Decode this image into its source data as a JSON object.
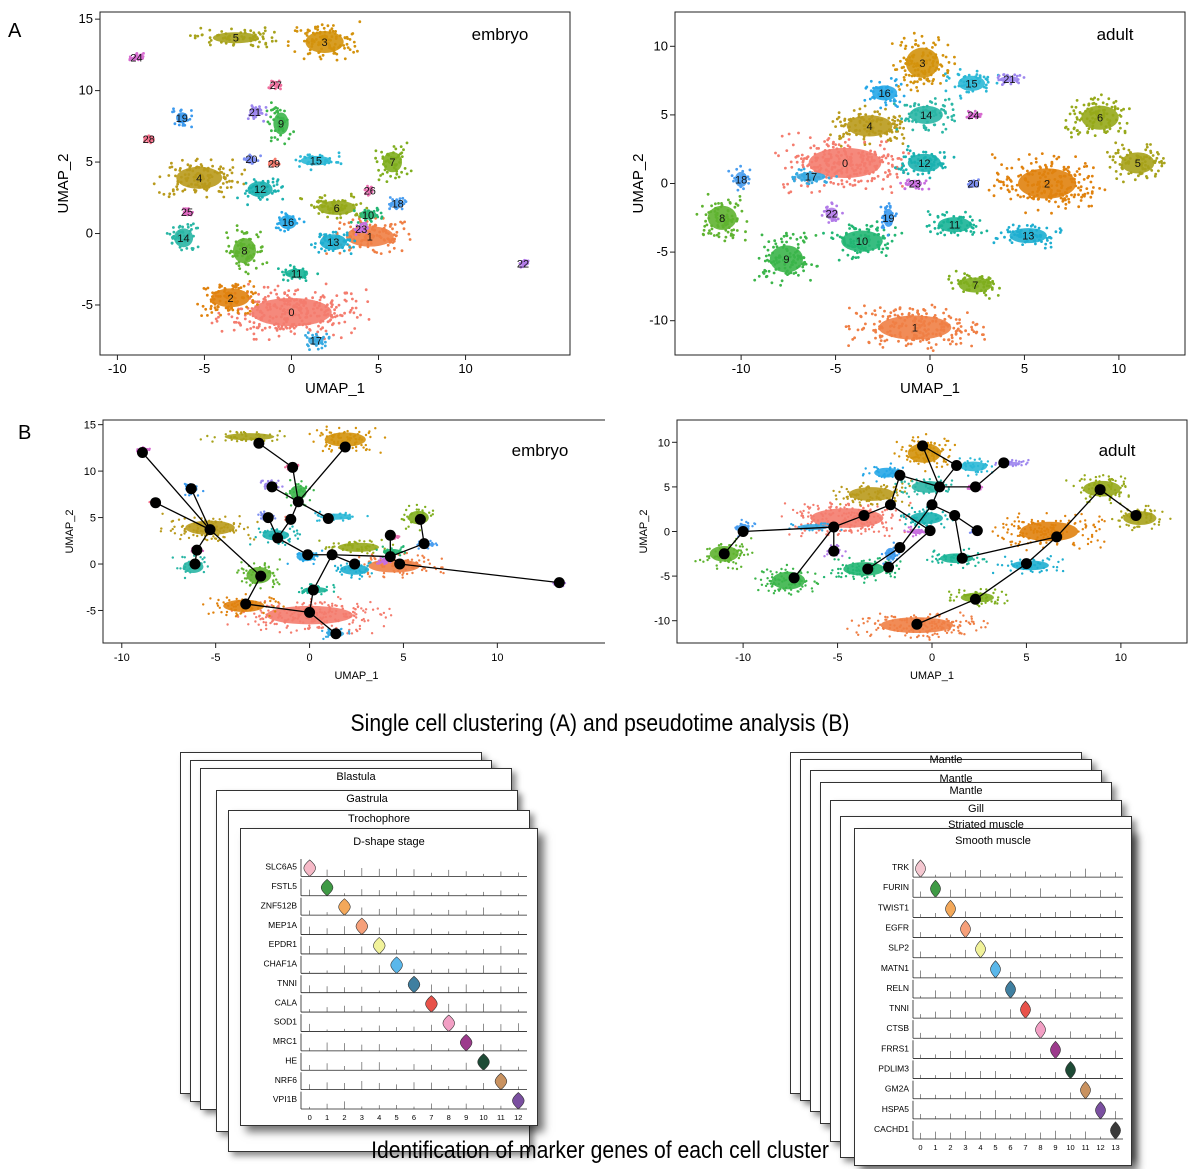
{
  "panel_letters": {
    "a": "A",
    "b": "B"
  },
  "captions": {
    "top": "Single cell clustering (A) and pseudotime analysis (B)",
    "bottom": "Identification of marker genes of each cell cluster"
  },
  "colors": {
    "c0": "#f47c6e",
    "c1": "#ef7f45",
    "c2": "#e0820e",
    "c3": "#d3920c",
    "c4": "#b99a1c",
    "c5": "#a7a21b",
    "c6": "#96a91a",
    "c7": "#7fae1e",
    "c8": "#5fb330",
    "c9": "#3bb54a",
    "c10": "#22b673",
    "c11": "#19b497",
    "c12": "#1bb1b0",
    "c13": "#1eaed0",
    "c14": "#2ab6a5",
    "c15": "#2bb8d6",
    "c16": "#26a7e7",
    "c17": "#36a9e1",
    "c18": "#4a9ef0",
    "c19": "#3b99ee",
    "c20": "#7d8ff2",
    "c21": "#9d86ee",
    "c22": "#b27be8",
    "c23": "#c86fdf",
    "c24": "#d76bd0",
    "c25": "#e06ac2",
    "c26": "#e870b1",
    "c27": "#ef6f9e",
    "c28": "#f4728c",
    "c29": "#f47c6e"
  },
  "chart_data": [
    {
      "type": "scatter",
      "name": "embryo",
      "title": "embryo",
      "xlabel": "UMAP_1",
      "ylabel": "UMAP_2",
      "xlim": [
        -11,
        16
      ],
      "ylim": [
        -8.5,
        15.5
      ],
      "xticks": [
        -10,
        -5,
        0,
        5,
        10
      ],
      "yticks": [
        -5,
        0,
        5,
        10,
        15
      ],
      "clusters": [
        {
          "label": "0",
          "x": 0.0,
          "y": -5.5,
          "rx": 4.2,
          "ry": 1.8,
          "color": "#f47c6e"
        },
        {
          "label": "1",
          "x": 4.5,
          "y": -0.2,
          "rx": 2.5,
          "ry": 1.3,
          "color": "#ef7f45"
        },
        {
          "label": "2",
          "x": -3.5,
          "y": -4.5,
          "rx": 2.0,
          "ry": 1.2,
          "color": "#e0820e"
        },
        {
          "label": "3",
          "x": 1.9,
          "y": 13.4,
          "rx": 2.0,
          "ry": 1.4,
          "color": "#d3920c"
        },
        {
          "label": "4",
          "x": -5.3,
          "y": 3.9,
          "rx": 2.4,
          "ry": 1.4,
          "color": "#b99a1c"
        },
        {
          "label": "5",
          "x": -3.2,
          "y": 13.7,
          "rx": 2.4,
          "ry": 0.7,
          "color": "#a7a21b"
        },
        {
          "label": "6",
          "x": 2.6,
          "y": 1.8,
          "rx": 2.0,
          "ry": 0.9,
          "color": "#96a91a"
        },
        {
          "label": "7",
          "x": 5.8,
          "y": 5.0,
          "rx": 1.0,
          "ry": 1.3,
          "color": "#7fae1e"
        },
        {
          "label": "8",
          "x": -2.7,
          "y": -1.2,
          "rx": 1.2,
          "ry": 1.6,
          "color": "#5fb330"
        },
        {
          "label": "9",
          "x": -0.6,
          "y": 7.7,
          "rx": 0.8,
          "ry": 1.4,
          "color": "#3bb54a"
        },
        {
          "label": "10",
          "x": 4.4,
          "y": 1.3,
          "rx": 0.9,
          "ry": 0.6,
          "color": "#22b673"
        },
        {
          "label": "11",
          "x": 0.3,
          "y": -2.8,
          "rx": 1.2,
          "ry": 0.6,
          "color": "#19b497"
        },
        {
          "label": "12",
          "x": -1.8,
          "y": 3.1,
          "rx": 1.3,
          "ry": 1.0,
          "color": "#1bb1b0"
        },
        {
          "label": "13",
          "x": 2.4,
          "y": -0.6,
          "rx": 1.4,
          "ry": 1.0,
          "color": "#1eaed0"
        },
        {
          "label": "14",
          "x": -6.2,
          "y": -0.3,
          "rx": 1.0,
          "ry": 1.2,
          "color": "#2ab6a5"
        },
        {
          "label": "15",
          "x": 1.4,
          "y": 5.1,
          "rx": 1.6,
          "ry": 0.6,
          "color": "#2bb8d6"
        },
        {
          "label": "16",
          "x": -0.2,
          "y": 0.8,
          "rx": 0.9,
          "ry": 0.9,
          "color": "#26a7e7"
        },
        {
          "label": "17",
          "x": 1.4,
          "y": -7.5,
          "rx": 0.8,
          "ry": 0.6,
          "color": "#36a9e1"
        },
        {
          "label": "18",
          "x": 6.1,
          "y": 2.1,
          "rx": 0.7,
          "ry": 0.5,
          "color": "#4a9ef0"
        },
        {
          "label": "19",
          "x": -6.3,
          "y": 8.1,
          "rx": 0.6,
          "ry": 0.7,
          "color": "#3b99ee"
        },
        {
          "label": "20",
          "x": -2.3,
          "y": 5.2,
          "rx": 0.5,
          "ry": 0.4,
          "color": "#7d8ff2"
        },
        {
          "label": "21",
          "x": -2.1,
          "y": 8.5,
          "rx": 0.6,
          "ry": 0.6,
          "color": "#9d86ee"
        },
        {
          "label": "22",
          "x": 13.3,
          "y": -2.1,
          "rx": 0.3,
          "ry": 0.3,
          "color": "#b27be8"
        },
        {
          "label": "23",
          "x": 4.0,
          "y": 0.3,
          "rx": 0.4,
          "ry": 0.4,
          "color": "#c86fdf"
        },
        {
          "label": "24",
          "x": -8.9,
          "y": 12.3,
          "rx": 0.4,
          "ry": 0.3,
          "color": "#d76bd0"
        },
        {
          "label": "25",
          "x": -6.0,
          "y": 1.5,
          "rx": 0.3,
          "ry": 0.3,
          "color": "#e06ac2"
        },
        {
          "label": "26",
          "x": 4.5,
          "y": 3.0,
          "rx": 0.3,
          "ry": 0.3,
          "color": "#e870b1"
        },
        {
          "label": "27",
          "x": -0.9,
          "y": 10.4,
          "rx": 0.4,
          "ry": 0.3,
          "color": "#ef6f9e"
        },
        {
          "label": "28",
          "x": -8.2,
          "y": 6.6,
          "rx": 0.3,
          "ry": 0.3,
          "color": "#f4728c"
        },
        {
          "label": "29",
          "x": -1.0,
          "y": 4.9,
          "rx": 0.3,
          "ry": 0.3,
          "color": "#f47c6e"
        }
      ],
      "trajectory_nodes": [
        {
          "x": -8.9,
          "y": 12.0
        },
        {
          "x": -8.2,
          "y": 6.6
        },
        {
          "x": -5.3,
          "y": 3.7
        },
        {
          "x": -6.3,
          "y": 8.1
        },
        {
          "x": -6.0,
          "y": 1.5
        },
        {
          "x": -6.1,
          "y": 0.0
        },
        {
          "x": -2.7,
          "y": 13.0
        },
        {
          "x": -0.9,
          "y": 10.4
        },
        {
          "x": 1.9,
          "y": 12.6
        },
        {
          "x": -2.0,
          "y": 8.3
        },
        {
          "x": -0.6,
          "y": 6.7
        },
        {
          "x": -1.0,
          "y": 4.8
        },
        {
          "x": 1.0,
          "y": 4.9
        },
        {
          "x": -2.2,
          "y": 5.0
        },
        {
          "x": -1.7,
          "y": 2.8
        },
        {
          "x": -0.1,
          "y": 1.0
        },
        {
          "x": 1.2,
          "y": 1.0
        },
        {
          "x": 2.4,
          "y": 0.0
        },
        {
          "x": 4.3,
          "y": 0.8
        },
        {
          "x": 4.3,
          "y": 3.1
        },
        {
          "x": 4.8,
          "y": 0.0
        },
        {
          "x": 5.9,
          "y": 4.8
        },
        {
          "x": 6.1,
          "y": 2.2
        },
        {
          "x": 13.3,
          "y": -2.0
        },
        {
          "x": -2.6,
          "y": -1.3
        },
        {
          "x": -3.4,
          "y": -4.3
        },
        {
          "x": 0.2,
          "y": -2.8
        },
        {
          "x": 0.0,
          "y": -5.2
        },
        {
          "x": 1.4,
          "y": -7.5
        }
      ],
      "trajectory_edges": [
        [
          0,
          2
        ],
        [
          1,
          2
        ],
        [
          3,
          2
        ],
        [
          4,
          2
        ],
        [
          5,
          4
        ],
        [
          2,
          24
        ],
        [
          24,
          25
        ],
        [
          25,
          27
        ],
        [
          27,
          28
        ],
        [
          27,
          26
        ],
        [
          26,
          16
        ],
        [
          16,
          15
        ],
        [
          15,
          14
        ],
        [
          14,
          13
        ],
        [
          14,
          11
        ],
        [
          11,
          10
        ],
        [
          10,
          7
        ],
        [
          7,
          6
        ],
        [
          10,
          8
        ],
        [
          10,
          9
        ],
        [
          10,
          12
        ],
        [
          16,
          17
        ],
        [
          16,
          18
        ],
        [
          18,
          19
        ],
        [
          18,
          20
        ],
        [
          18,
          22
        ],
        [
          22,
          21
        ],
        [
          20,
          23
        ]
      ]
    },
    {
      "type": "scatter",
      "name": "adult",
      "title": "adult",
      "xlabel": "UMAP_1",
      "ylabel": "UMAP_2",
      "xlim": [
        -13.5,
        13.5
      ],
      "ylim": [
        -12.5,
        12.5
      ],
      "xticks": [
        -10,
        -5,
        0,
        5,
        10
      ],
      "yticks": [
        -10,
        -5,
        0,
        5,
        10
      ],
      "clusters": [
        {
          "label": "0",
          "x": -4.5,
          "y": 1.5,
          "rx": 3.5,
          "ry": 2.0,
          "color": "#f47c6e"
        },
        {
          "label": "1",
          "x": -0.8,
          "y": -10.5,
          "rx": 3.5,
          "ry": 1.6,
          "color": "#ef7f45"
        },
        {
          "label": "2",
          "x": 6.2,
          "y": 0.0,
          "rx": 2.8,
          "ry": 2.0,
          "color": "#e0820e"
        },
        {
          "label": "3",
          "x": -0.4,
          "y": 8.8,
          "rx": 1.6,
          "ry": 2.0,
          "color": "#d3920c"
        },
        {
          "label": "4",
          "x": -3.2,
          "y": 4.2,
          "rx": 2.2,
          "ry": 1.4,
          "color": "#b99a1c"
        },
        {
          "label": "5",
          "x": 11.0,
          "y": 1.5,
          "rx": 1.6,
          "ry": 1.4,
          "color": "#a7a21b"
        },
        {
          "label": "6",
          "x": 9.0,
          "y": 4.8,
          "rx": 1.8,
          "ry": 1.6,
          "color": "#96a91a"
        },
        {
          "label": "7",
          "x": 2.4,
          "y": -7.4,
          "rx": 1.6,
          "ry": 1.0,
          "color": "#7fae1e"
        },
        {
          "label": "8",
          "x": -11.0,
          "y": -2.5,
          "rx": 1.4,
          "ry": 1.6,
          "color": "#5fb330"
        },
        {
          "label": "9",
          "x": -7.6,
          "y": -5.5,
          "rx": 1.6,
          "ry": 1.8,
          "color": "#3bb54a"
        },
        {
          "label": "10",
          "x": -3.6,
          "y": -4.2,
          "rx": 2.0,
          "ry": 1.4,
          "color": "#22b673"
        },
        {
          "label": "11",
          "x": 1.3,
          "y": -3.0,
          "rx": 1.6,
          "ry": 1.0,
          "color": "#19b497"
        },
        {
          "label": "12",
          "x": -0.3,
          "y": 1.5,
          "rx": 1.6,
          "ry": 1.2,
          "color": "#1bb1b0"
        },
        {
          "label": "13",
          "x": 5.2,
          "y": -3.8,
          "rx": 1.8,
          "ry": 1.0,
          "color": "#1eaed0"
        },
        {
          "label": "14",
          "x": -0.2,
          "y": 5.0,
          "rx": 1.6,
          "ry": 1.2,
          "color": "#2ab6a5"
        },
        {
          "label": "15",
          "x": 2.2,
          "y": 7.3,
          "rx": 1.3,
          "ry": 1.0,
          "color": "#2bb8d6"
        },
        {
          "label": "16",
          "x": -2.4,
          "y": 6.6,
          "rx": 1.2,
          "ry": 1.0,
          "color": "#26a7e7"
        },
        {
          "label": "17",
          "x": -6.3,
          "y": 0.5,
          "rx": 1.4,
          "ry": 0.6,
          "color": "#36a9e1"
        },
        {
          "label": "18",
          "x": -10.0,
          "y": 0.3,
          "rx": 0.6,
          "ry": 1.0,
          "color": "#4a9ef0"
        },
        {
          "label": "19",
          "x": -2.2,
          "y": -2.5,
          "rx": 0.5,
          "ry": 1.2,
          "color": "#3b99ee"
        },
        {
          "label": "20",
          "x": 2.3,
          "y": 0.0,
          "rx": 0.3,
          "ry": 0.3,
          "color": "#7d8ff2"
        },
        {
          "label": "21",
          "x": 4.2,
          "y": 7.6,
          "rx": 0.9,
          "ry": 0.4,
          "color": "#9d86ee"
        },
        {
          "label": "22",
          "x": -5.2,
          "y": -2.2,
          "rx": 0.6,
          "ry": 0.8,
          "color": "#b27be8"
        },
        {
          "label": "23",
          "x": -0.8,
          "y": 0.0,
          "rx": 0.7,
          "ry": 0.5,
          "color": "#c86fdf"
        },
        {
          "label": "24",
          "x": 2.3,
          "y": 5.0,
          "rx": 0.4,
          "ry": 0.3,
          "color": "#d76bd0"
        }
      ],
      "trajectory_nodes": [
        {
          "x": -10.0,
          "y": 0.0
        },
        {
          "x": -11.0,
          "y": -2.5
        },
        {
          "x": -5.2,
          "y": 0.5
        },
        {
          "x": -7.3,
          "y": -5.2
        },
        {
          "x": -3.6,
          "y": 1.8
        },
        {
          "x": -5.2,
          "y": -2.2
        },
        {
          "x": -2.2,
          "y": 3.0
        },
        {
          "x": -1.7,
          "y": 6.3
        },
        {
          "x": -0.5,
          "y": 9.6
        },
        {
          "x": 1.3,
          "y": 7.4
        },
        {
          "x": 0.4,
          "y": 5.0
        },
        {
          "x": 2.3,
          "y": 5.0
        },
        {
          "x": 3.8,
          "y": 7.7
        },
        {
          "x": 0.0,
          "y": 3.0
        },
        {
          "x": 1.2,
          "y": 1.8
        },
        {
          "x": 2.4,
          "y": 0.1
        },
        {
          "x": -1.7,
          "y": -1.8
        },
        {
          "x": -3.4,
          "y": -4.2
        },
        {
          "x": -0.1,
          "y": 0.1
        },
        {
          "x": -2.3,
          "y": -4.0
        },
        {
          "x": 1.6,
          "y": -3.0
        },
        {
          "x": 6.6,
          "y": -0.6
        },
        {
          "x": 8.9,
          "y": 4.7
        },
        {
          "x": 10.8,
          "y": 1.8
        },
        {
          "x": 5.0,
          "y": -3.6
        },
        {
          "x": 2.3,
          "y": -7.6
        },
        {
          "x": -0.8,
          "y": -10.4
        }
      ],
      "trajectory_edges": [
        [
          1,
          0
        ],
        [
          0,
          2
        ],
        [
          2,
          3
        ],
        [
          2,
          4
        ],
        [
          4,
          6
        ],
        [
          2,
          5
        ],
        [
          6,
          7
        ],
        [
          7,
          10
        ],
        [
          10,
          8
        ],
        [
          8,
          9
        ],
        [
          9,
          10
        ],
        [
          10,
          11
        ],
        [
          11,
          12
        ],
        [
          10,
          13
        ],
        [
          13,
          14
        ],
        [
          14,
          15
        ],
        [
          13,
          16
        ],
        [
          16,
          17
        ],
        [
          6,
          18
        ],
        [
          18,
          19
        ],
        [
          14,
          20
        ],
        [
          20,
          21
        ],
        [
          21,
          22
        ],
        [
          22,
          23
        ],
        [
          21,
          24
        ],
        [
          24,
          25
        ],
        [
          25,
          26
        ]
      ]
    }
  ],
  "violin_stacks": [
    {
      "name": "embryo-markers",
      "stack_titles": [
        "Blastula",
        "Gastrula",
        "Trochophore"
      ],
      "front_title": "D-shape stage",
      "genes": [
        "SLC6A5",
        "FSTL5",
        "ZNF512B",
        "MEP1A",
        "EPDR1",
        "CHAF1A",
        "TNNI",
        "CALA",
        "SOD1",
        "MRC1",
        "HE",
        "NRF6",
        "VPI1B"
      ],
      "clusters": [
        "0",
        "1",
        "2",
        "3",
        "4",
        "5",
        "6",
        "7",
        "8",
        "9",
        "10",
        "11",
        "12"
      ],
      "colors": [
        "#f6b9c7",
        "#3f9a45",
        "#f3a85a",
        "#f6a07a",
        "#f1f29a",
        "#5ab7ea",
        "#3f7fa0",
        "#e8524a",
        "#f29fc4",
        "#9c3b8c",
        "#1d4a35",
        "#c99260",
        "#7a4fa0"
      ]
    },
    {
      "name": "adult-markers",
      "stack_titles": [
        "Mantle",
        "Mantle",
        "Mantle",
        "Gill",
        "Striated muscle"
      ],
      "front_title": "Smooth muscle",
      "genes": [
        "TRK",
        "FURIN",
        "TWIST1",
        "EGFR",
        "SLP2",
        "MATN1",
        "RELN",
        "TNNI",
        "CTSB",
        "FRRS1",
        "PDLIM3",
        "GM2A",
        "HSPA5",
        "CACHD1"
      ],
      "clusters": [
        "0",
        "1",
        "2",
        "3",
        "4",
        "5",
        "6",
        "7",
        "8",
        "9",
        "10",
        "11",
        "12",
        "13"
      ],
      "colors": [
        "#f4c7d0",
        "#3f9a45",
        "#f3a85a",
        "#f6a07a",
        "#f1f29a",
        "#5ab7ea",
        "#3f7fa0",
        "#e8524a",
        "#f29fc4",
        "#9c3b8c",
        "#1d4a35",
        "#c99260",
        "#7a4fa0",
        "#3a3a3a"
      ]
    }
  ]
}
